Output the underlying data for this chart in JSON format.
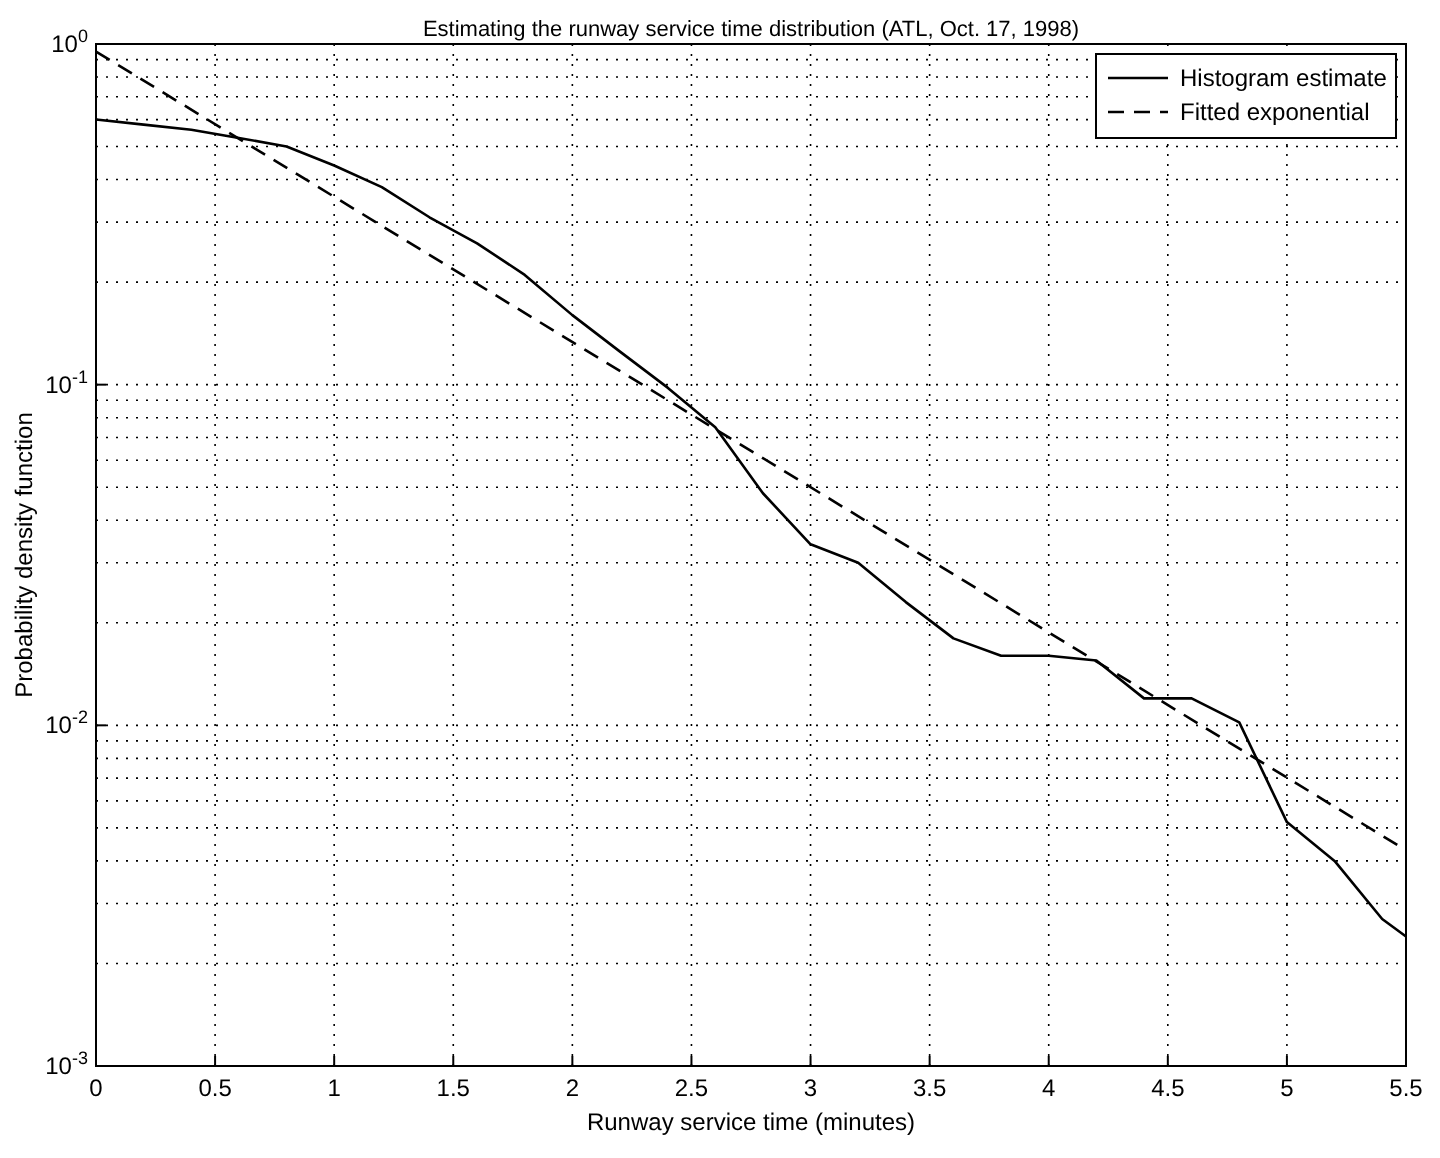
{
  "chart_data": {
    "type": "line",
    "title": "Estimating the runway service time distribution (ATL, Oct. 17, 1998)",
    "xlabel": "Runway service time (minutes)",
    "ylabel": "Probability density function",
    "log": "y",
    "grid": true,
    "legend": "top right",
    "xlim": [
      0,
      5.5
    ],
    "xticks": [
      0,
      0.5,
      1,
      1.5,
      2,
      2.5,
      3,
      3.5,
      4,
      4.5,
      5,
      5.5
    ],
    "ylim": [
      0.001,
      1
    ],
    "yticks": [
      {
        "value": 0.001,
        "label": "10$^{-3}$"
      },
      {
        "value": 0.01,
        "label": "10$^{-2}$"
      },
      {
        "value": 0.1,
        "label": "10$^{-1}$"
      },
      {
        "value": 1,
        "label": "10$^{0}$"
      }
    ],
    "series": [
      {
        "name": "Histogram estimate",
        "color": "#000000",
        "line_style": "solid",
        "x": [
          0,
          0.2,
          0.4,
          0.6,
          0.8,
          1.0,
          1.2,
          1.4,
          1.6,
          1.8,
          2.0,
          2.2,
          2.4,
          2.6,
          2.8,
          3.0,
          3.2,
          3.4,
          3.6,
          3.8,
          4.0,
          4.2,
          4.4,
          4.6,
          4.8,
          5.0,
          5.2,
          5.4,
          5.5
        ],
        "values": [
          0.6,
          0.58,
          0.56,
          0.53,
          0.5,
          0.44,
          0.38,
          0.31,
          0.26,
          0.21,
          0.16,
          0.125,
          0.098,
          0.075,
          0.048,
          0.034,
          0.03,
          0.023,
          0.018,
          0.016,
          0.016,
          0.0155,
          0.012,
          0.012,
          0.0102,
          0.0052,
          0.004,
          0.0027,
          0.0024
        ]
      },
      {
        "name": "Fitted exponential",
        "color": "#000000",
        "line_style": "dashed",
        "x": [
          0,
          5.5
        ],
        "values": [
          0.95,
          0.0043
        ]
      }
    ]
  }
}
